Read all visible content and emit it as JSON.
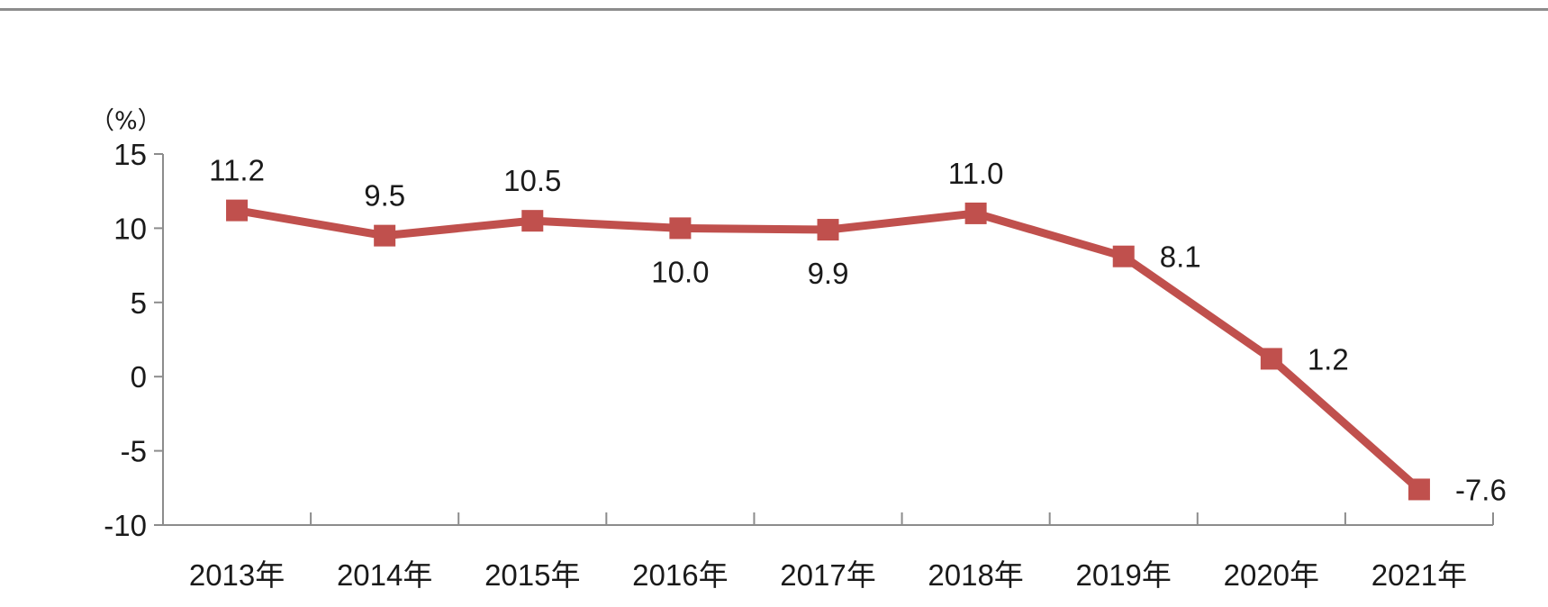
{
  "chart_data": {
    "type": "line",
    "title": "",
    "xlabel": "",
    "ylabel": "（%）",
    "ylim": [
      -10,
      15
    ],
    "yticks": [
      15,
      10,
      5,
      0,
      -5,
      -10
    ],
    "categories": [
      "2013年",
      "2014年",
      "2015年",
      "2016年",
      "2017年",
      "2018年",
      "2019年",
      "2020年",
      "2021年"
    ],
    "series": [
      {
        "values": [
          11.2,
          9.5,
          10.5,
          10.0,
          9.9,
          11.0,
          8.1,
          1.2,
          -7.6
        ],
        "labels": [
          "11.2",
          "9.5",
          "10.5",
          "10.0",
          "9.9",
          "11.0",
          "8.1",
          "1.2",
          "-7.6"
        ],
        "label_positions": [
          "above",
          "above",
          "above",
          "below",
          "below",
          "above",
          "right",
          "right",
          "right"
        ],
        "color": "#c0504d",
        "marker": "square"
      }
    ],
    "grid": false,
    "legend": "none"
  }
}
